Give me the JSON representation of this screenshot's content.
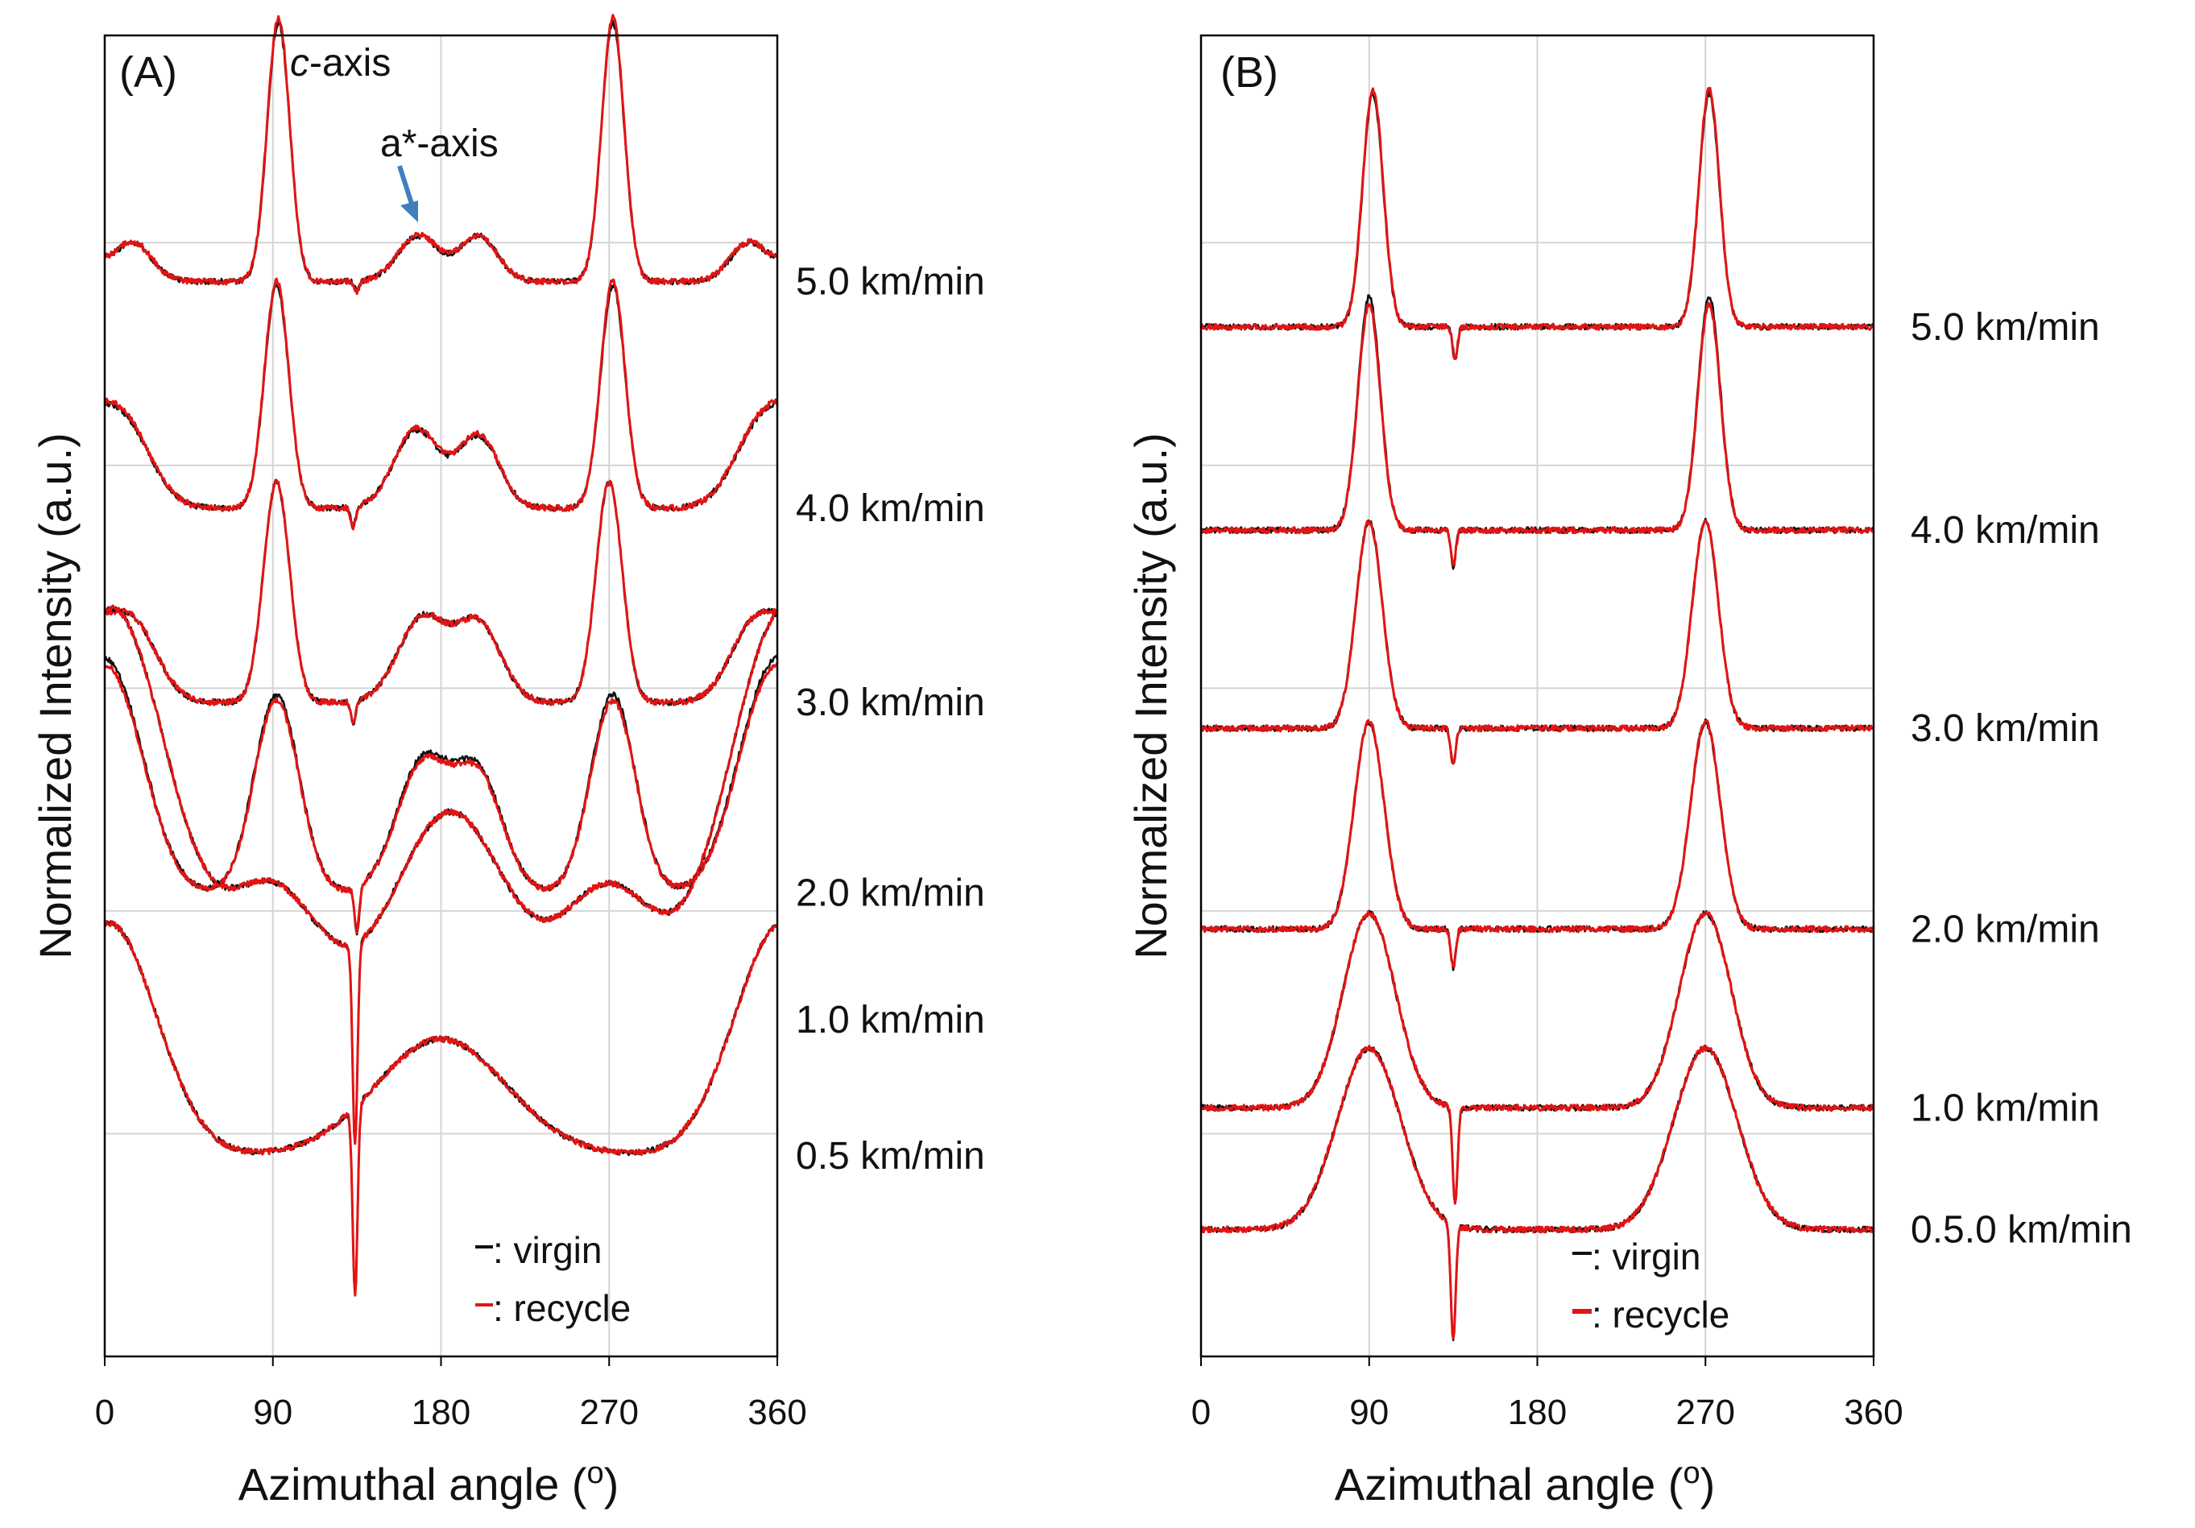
{
  "figure": {
    "panels": [
      "A",
      "B"
    ]
  },
  "chart_data": [
    {
      "type": "line",
      "panel_label": "(A)",
      "title": "",
      "xlabel": "Azimuthal angle (o)",
      "xlabel_text": "Azimuthal angle (",
      "xlabel_degree": "o",
      "xlabel_close": ")",
      "ylabel": "Normalized Intensity (a.u.)",
      "xlim": [
        0,
        360
      ],
      "ylim": [
        0,
        10.2
      ],
      "xticks": [
        0,
        90,
        180,
        270,
        360
      ],
      "xtick_labels": [
        "0",
        "90",
        "180",
        "270",
        "360"
      ],
      "yticks": [
        0,
        1.72,
        3.44,
        5.16,
        6.88,
        8.6
      ],
      "grid": true,
      "legend_position": "bottom-right",
      "legend": [
        {
          "label": ": virgin",
          "color": "#111111"
        },
        {
          "label": ": recycle",
          "color": "#e31414"
        }
      ],
      "annotations": [
        {
          "text_italic": "c",
          "text": "-axis",
          "near_x": 90
        },
        {
          "text": "a*-axis",
          "arrow_to_x": 168
        }
      ],
      "curves": [
        {
          "speed": "5.0 km/min",
          "offset": 8.3,
          "peaks": [
            [
              15,
              0.3,
              10
            ],
            [
              93,
              2.0,
              6
            ],
            [
              168,
              0.35,
              11
            ],
            [
              200,
              0.35,
              10
            ],
            [
              272,
              2.0,
              6
            ],
            [
              345,
              0.3,
              10
            ]
          ],
          "dip": [
            135,
            -0.08
          ],
          "rec_scale": 1.02
        },
        {
          "speed": "4.0 km/min",
          "offset": 6.55,
          "peaks": [
            [
              12,
              0.55,
              14
            ],
            [
              92,
              1.72,
              6.5
            ],
            [
              167,
              0.6,
              12
            ],
            [
              200,
              0.55,
              11
            ],
            [
              272,
              1.72,
              6.5
            ],
            [
              350,
              0.55,
              14
            ]
          ],
          "dip": [
            133,
            -0.15
          ],
          "rec_scale": 1.02
        },
        {
          "speed": "3.0 km/min",
          "offset": 5.05,
          "peaks": [
            [
              15,
              0.6,
              13
            ],
            [
              92,
              1.7,
              7
            ],
            [
              170,
              0.65,
              13
            ],
            [
              200,
              0.6,
              12
            ],
            [
              270,
              1.7,
              7
            ],
            [
              348,
              0.6,
              13
            ]
          ],
          "dip": [
            133,
            -0.18
          ],
          "rec_scale": 1.0
        },
        {
          "speed": "2.0 km/min",
          "offset": 3.58,
          "peaks": [
            [
              10,
              1.1,
              16
            ],
            [
              92,
              1.53,
              12
            ],
            [
              170,
              1.0,
              14
            ],
            [
              200,
              0.9,
              13
            ],
            [
              272,
              1.53,
              12
            ],
            [
              350,
              1.1,
              16
            ]
          ],
          "dip": [
            135,
            -0.35
          ],
          "rec_scale": 0.97
        },
        {
          "speed": "1.0 km/min",
          "offset": 2.6,
          "peaks": [
            [
              8,
              1.6,
              30
            ],
            [
              90,
              1.0,
              25
            ],
            [
              185,
              1.6,
              30
            ],
            [
              270,
              1.0,
              25
            ],
            [
              360,
              1.6,
              30
            ]
          ],
          "dip": [
            134,
            -1.55
          ],
          "rec_scale": 1.0
        },
        {
          "speed": "0.5 km/min",
          "offset": 1.55,
          "peaks": [
            [
              5,
              0.9,
              25
            ],
            [
              180,
              0.9,
              35
            ],
            [
              360,
              0.9,
              25
            ]
          ],
          "dip": [
            134,
            -1.45
          ],
          "rec_scale": 1.0
        }
      ]
    },
    {
      "type": "line",
      "panel_label": "(B)",
      "title": "",
      "xlabel": "Azimuthal angle (o)",
      "xlabel_text": "Azimuthal angle (",
      "xlabel_degree": "o",
      "xlabel_close": ")",
      "ylabel": "Normalized Intensity (a.u.)",
      "xlim": [
        0,
        360
      ],
      "ylim": [
        0,
        10.2
      ],
      "xticks": [
        0,
        90,
        180,
        270,
        360
      ],
      "xtick_labels": [
        "0",
        "90",
        "180",
        "270",
        "360"
      ],
      "yticks": [
        1.72,
        3.44,
        5.16,
        6.88,
        8.6
      ],
      "grid": true,
      "legend_position": "bottom-right",
      "legend": [
        {
          "label": ": virgin",
          "color": "#111111"
        },
        {
          "label": ": recycle",
          "color": "#e31414"
        }
      ],
      "curves": [
        {
          "speed": "5.0 km/min",
          "offset": 7.95,
          "peaks": [
            [
              92,
              1.8,
              5.5
            ],
            [
              272,
              1.8,
              5.5
            ]
          ],
          "dip": [
            136,
            -0.25
          ],
          "rec_scale": 1.02
        },
        {
          "speed": "4.0 km/min",
          "offset": 6.38,
          "peaks": [
            [
              90,
              1.8,
              6
            ],
            [
              272,
              1.8,
              6
            ]
          ],
          "dip": [
            135,
            -0.28
          ],
          "rec_scale": 0.97
        },
        {
          "speed": "3.0 km/min",
          "offset": 4.85,
          "peaks": [
            [
              90,
              1.6,
              7
            ],
            [
              270,
              1.6,
              7
            ]
          ],
          "dip": [
            135,
            -0.28
          ],
          "rec_scale": 1.0
        },
        {
          "speed": "2.0 km/min",
          "offset": 3.3,
          "peaks": [
            [
              90,
              1.6,
              8
            ],
            [
              270,
              1.6,
              8
            ]
          ],
          "dip": [
            135,
            -0.3
          ],
          "rec_scale": 1.0
        },
        {
          "speed": "1.0 km/min",
          "offset": 1.92,
          "peaks": [
            [
              90,
              1.5,
              14
            ],
            [
              270,
              1.5,
              14
            ]
          ],
          "dip": [
            136,
            -0.75
          ],
          "rec_scale": 1.0
        },
        {
          "speed": "0.5.0 km/min",
          "offset": 0.98,
          "peaks": [
            [
              90,
              1.4,
              17
            ],
            [
              270,
              1.4,
              17
            ]
          ],
          "dip": [
            135,
            -0.9
          ],
          "rec_scale": 1.0
        }
      ]
    }
  ]
}
